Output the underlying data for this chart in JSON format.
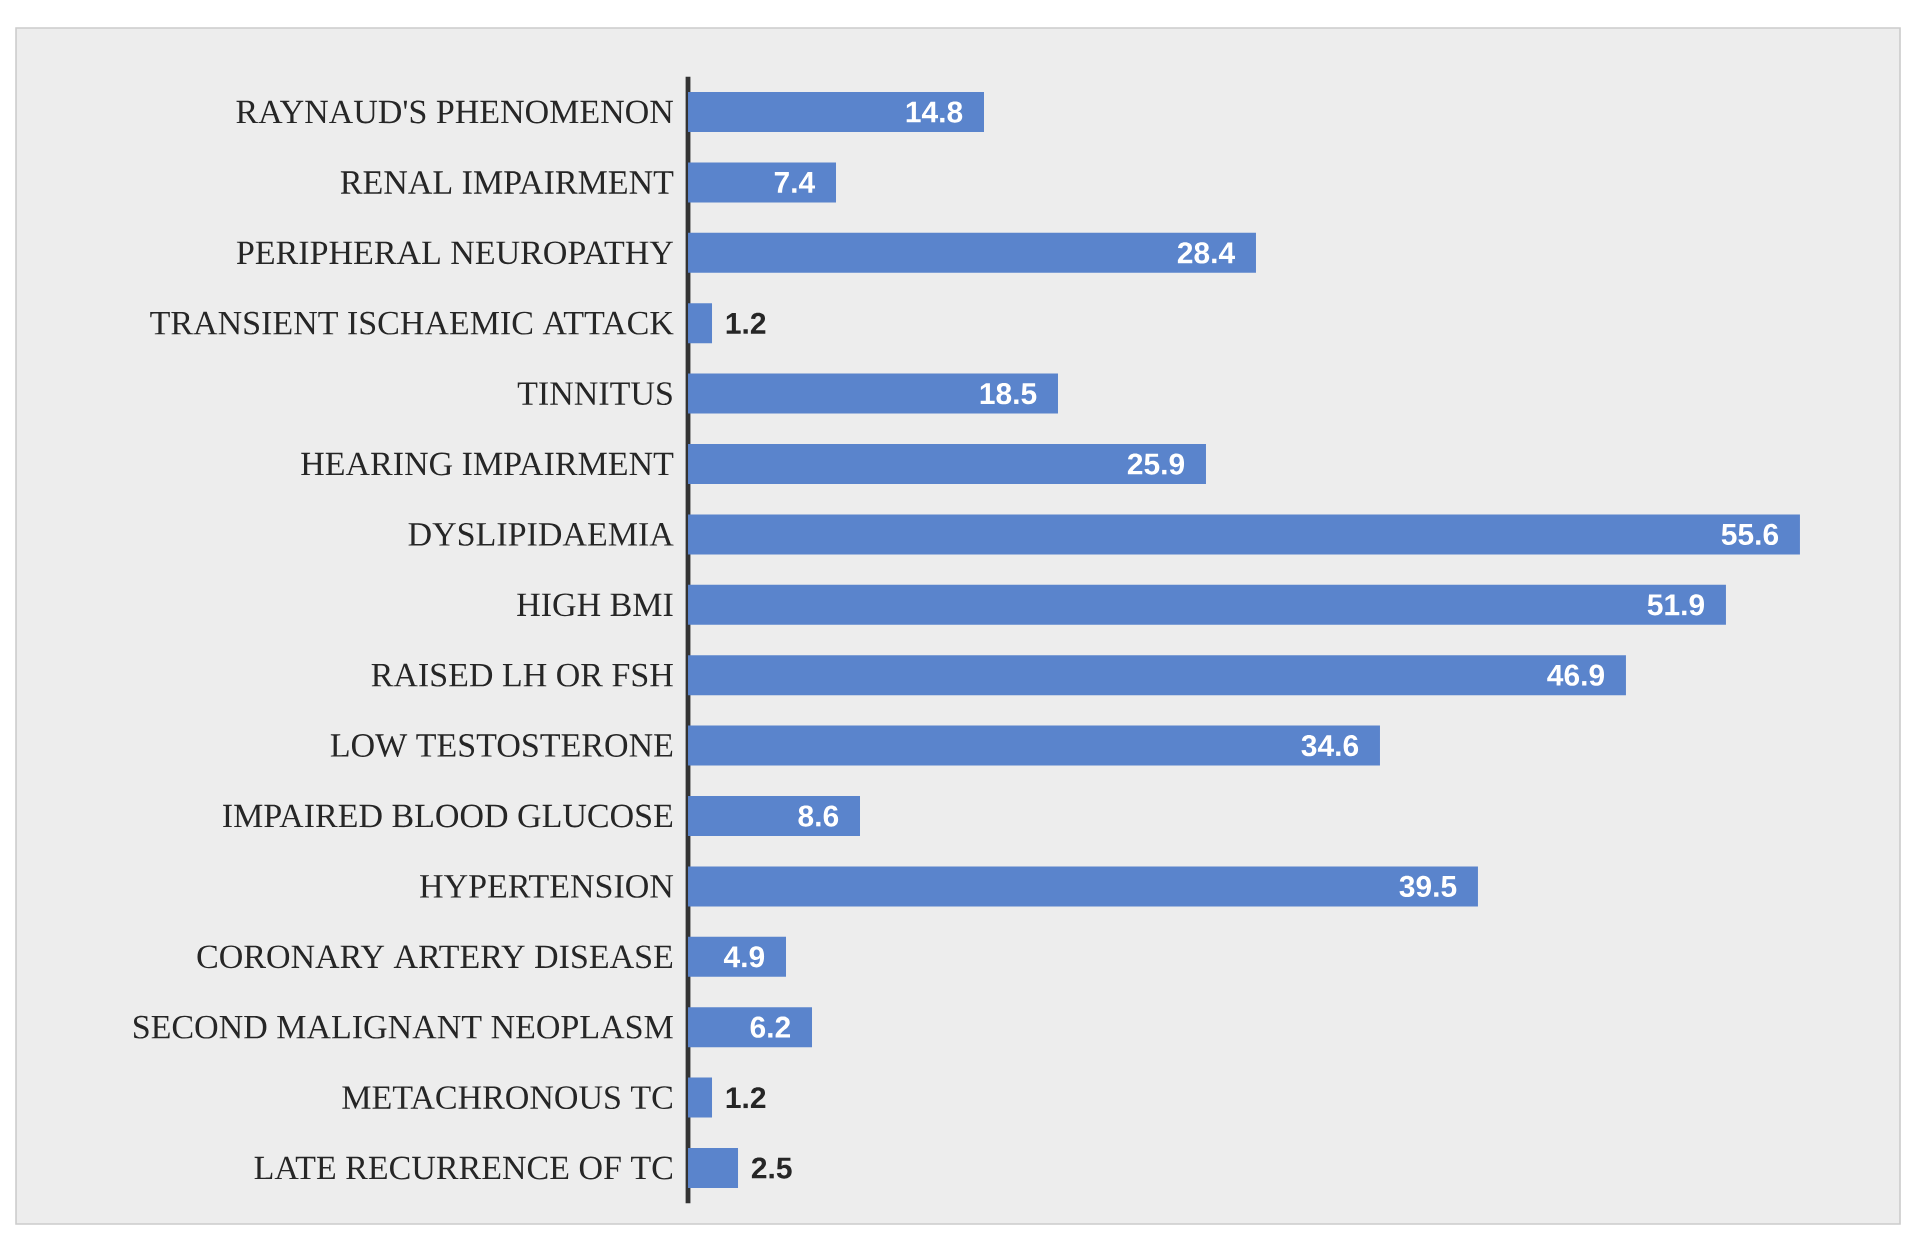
{
  "chart_data": {
    "type": "bar",
    "orientation": "horizontal",
    "data_labels": true,
    "color": "#5a84cc",
    "categories": [
      "RAYNAUD'S PHENOMENON",
      "RENAL IMPAIRMENT",
      "PERIPHERAL NEUROPATHY",
      "TRANSIENT ISCHAEMIC ATTACK",
      "TINNITUS",
      "HEARING IMPAIRMENT",
      "DYSLIPIDAEMIA",
      "HIGH BMI",
      "RAISED LH OR FSH",
      "LOW TESTOSTERONE",
      "IMPAIRED BLOOD GLUCOSE",
      "HYPERTENSION",
      "CORONARY ARTERY DISEASE",
      "SECOND MALIGNANT NEOPLASM",
      "METACHRONOUS TC",
      "LATE RECURRENCE OF TC"
    ],
    "values": [
      14.8,
      7.4,
      28.4,
      1.2,
      18.5,
      25.9,
      55.6,
      51.9,
      46.9,
      34.6,
      8.6,
      39.5,
      4.9,
      6.2,
      1.2,
      2.5
    ]
  }
}
